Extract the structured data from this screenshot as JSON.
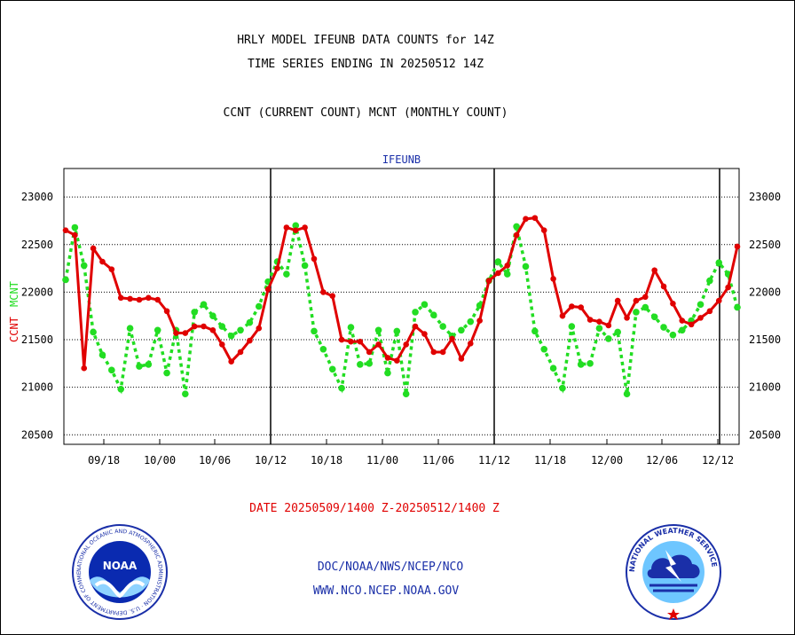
{
  "titles": {
    "line1": "HRLY MODEL IFEUNB DATA COUNTS for 14Z",
    "line2": "TIME SERIES ENDING IN 20250512 14Z",
    "line3": "CCNT (CURRENT COUNT) MCNT (MONTHLY COUNT)"
  },
  "footer": {
    "date_range": "DATE 20250509/1400 Z-20250512/1400 Z",
    "org_path": "DOC/NOAA/NWS/NCEP/NCO",
    "website": "WWW.NCO.NCEP.NOAA.GOV"
  },
  "logos": {
    "noaa_text": "NOAA",
    "noaa_ring": "NATIONAL OCEANIC AND ATMOSPHERIC ADMINISTRATION · U.S. DEPARTMENT OF COMMERCE",
    "nws_ring": "NATIONAL WEATHER SERVICE"
  },
  "colors": {
    "ccnt": "#e00000",
    "mcnt": "#22dd22",
    "text_blue": "#1a2fa8"
  },
  "chart_data": {
    "type": "line",
    "title": "IFEUNB",
    "ylabel_ccnt": "CCNT",
    "ylabel_mcnt": "MCNT",
    "ylim": [
      20400,
      23300
    ],
    "yticks": [
      20500,
      21000,
      21500,
      22000,
      22500,
      23000
    ],
    "xtick_labels": [
      "09/18",
      "10/00",
      "10/06",
      "10/12",
      "10/18",
      "11/00",
      "11/06",
      "11/12",
      "11/18",
      "12/00",
      "12/06",
      "12/12"
    ],
    "grid": "horizontal dotted",
    "series": [
      {
        "name": "CCNT",
        "values": [
          22650,
          22600,
          21200,
          22460,
          22320,
          22240,
          21940,
          21930,
          21920,
          21940,
          21920,
          21800,
          21570,
          21570,
          21640,
          21640,
          21600,
          21450,
          21270,
          21370,
          21490,
          21620,
          22030,
          22250,
          22680,
          22650,
          22680,
          22350,
          22000,
          21960,
          21500,
          21480,
          21480,
          21370,
          21450,
          21310,
          21280,
          21450,
          21640,
          21560,
          21370,
          21370,
          21510,
          21300,
          21460,
          21700,
          22120,
          22200,
          22280,
          22600,
          22770,
          22780,
          22650,
          22140,
          21750,
          21850,
          21840,
          21710,
          21690,
          21650,
          21910,
          21730,
          21910,
          21950,
          22230,
          22060,
          21880,
          21700,
          21660,
          21730,
          21800,
          21910,
          22050,
          22480
        ]
      },
      {
        "name": "MCNT",
        "values": [
          22130,
          22680,
          22280,
          21580,
          21340,
          21180,
          20980,
          21620,
          21220,
          21240,
          21600,
          21150,
          21600,
          20930,
          21790,
          21870,
          21750,
          21640,
          21540,
          21600,
          21680,
          21850,
          22110,
          22320,
          22190,
          22700,
          22280,
          21590,
          21400,
          21190,
          20990,
          21630,
          21240,
          21250,
          21600,
          21150,
          21590,
          20930,
          21790,
          21870,
          21760,
          21640,
          21540,
          21600,
          21690,
          21860,
          22120,
          22320,
          22190,
          22690,
          22270,
          21590,
          21400,
          21200,
          20990,
          21640,
          21240,
          21250,
          21620,
          21510,
          21580,
          20930,
          21790,
          21840,
          21740,
          21630,
          21550,
          21600,
          21700,
          21870,
          22120,
          22310,
          22190,
          21840
        ]
      }
    ]
  }
}
